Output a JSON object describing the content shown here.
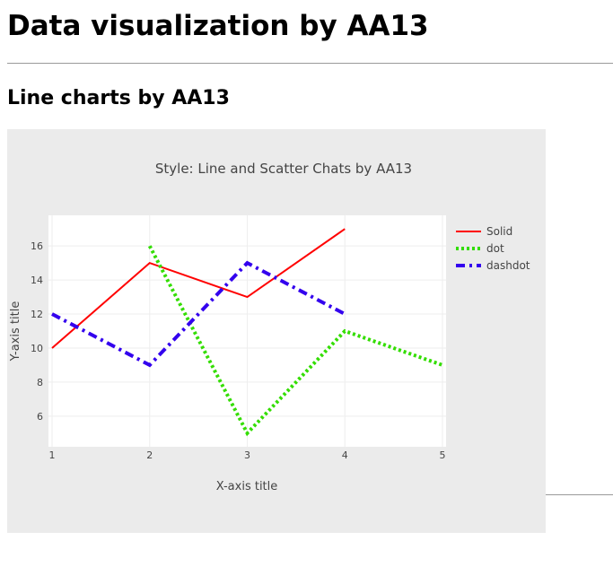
{
  "page": {
    "title": "Data visualization by AA13",
    "section_title": "Line charts by AA13"
  },
  "chart_data": {
    "type": "line",
    "title": "Style: Line and Scatter Chats by AA13",
    "xlabel": "X-axis title",
    "ylabel": "Y-axis title",
    "x_ticks": [
      1,
      2,
      3,
      4,
      5
    ],
    "y_ticks": [
      6,
      8,
      10,
      12,
      14,
      16
    ],
    "xlim": [
      1,
      5
    ],
    "ylim": [
      4.2,
      17.8
    ],
    "grid": true,
    "legend_position": "top-right",
    "series": [
      {
        "name": "Solid",
        "dash": "solid",
        "color": "#ff0000",
        "x": [
          1,
          2,
          3,
          4
        ],
        "y": [
          10,
          15,
          13,
          17
        ]
      },
      {
        "name": "dot",
        "dash": "dot",
        "color": "#33dd00",
        "x": [
          2,
          3,
          4,
          5
        ],
        "y": [
          16,
          5,
          11,
          9
        ]
      },
      {
        "name": "dashdot",
        "dash": "dashdot",
        "color": "#3300ee",
        "x": [
          1,
          2,
          3,
          4
        ],
        "y": [
          12,
          9,
          15,
          12
        ]
      }
    ]
  }
}
